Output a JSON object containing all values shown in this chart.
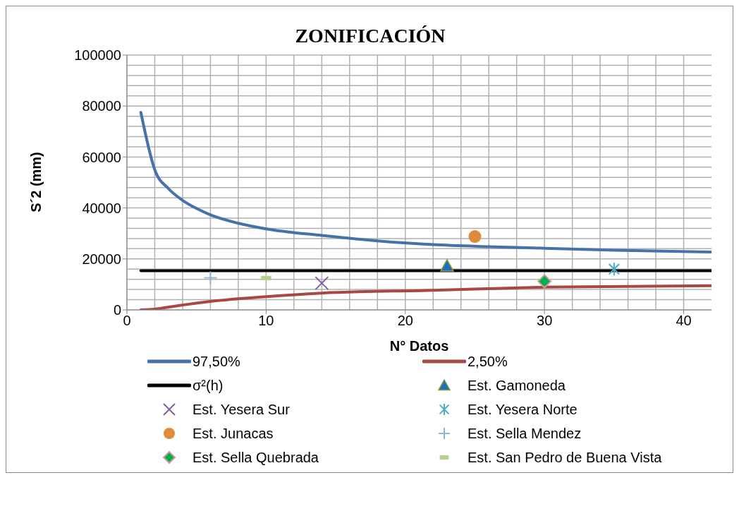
{
  "chart_data": {
    "type": "line",
    "title": "ZONIFICACIÓN",
    "xlabel": "N° Datos",
    "ylabel": "S´2 (mm)",
    "xlim": [
      0,
      42
    ],
    "xticks": [
      0,
      10,
      20,
      30,
      40
    ],
    "ylim": [
      0,
      100000
    ],
    "yticks": [
      0,
      20000,
      40000,
      60000,
      80000,
      100000
    ],
    "grid": true,
    "legend": "bottom",
    "line_style": "solid",
    "series": [
      {
        "name": "97,50%",
        "color": "#4572a7",
        "marker": "none",
        "x": [
          1,
          2,
          3,
          4,
          5,
          6,
          8,
          10,
          14,
          18,
          22,
          26,
          30,
          35,
          42
        ],
        "values": [
          77500,
          55000,
          47500,
          43000,
          39800,
          37300,
          34000,
          31800,
          29200,
          27100,
          25600,
          24800,
          24200,
          23400,
          22700
        ]
      },
      {
        "name": "2,50%",
        "color": "#aa4643",
        "marker": "none",
        "x": [
          1,
          2,
          3,
          4,
          6,
          10,
          14,
          22,
          30,
          42
        ],
        "values": [
          0,
          300,
          1100,
          1900,
          3300,
          5200,
          6600,
          7700,
          8900,
          9500
        ]
      },
      {
        "name": "σ²(h)",
        "color": "#000000",
        "marker": "none",
        "x": [
          1,
          42
        ],
        "values": [
          15400,
          15400
        ]
      },
      {
        "name": "Est. Gamoneda",
        "type": "scatter",
        "color": "#1f6fbf",
        "marker": "triangle",
        "x": [
          23
        ],
        "values": [
          17200
        ]
      },
      {
        "name": "Est. Yesera Sur",
        "type": "scatter",
        "color": "#7f5fa0",
        "marker": "cross",
        "x": [
          14
        ],
        "values": [
          10500
        ]
      },
      {
        "name": "Est. Yesera Norte",
        "type": "scatter",
        "color": "#4bacc6",
        "x": [
          35
        ],
        "values": [
          16000
        ]
      },
      {
        "name": "Est. Junacas",
        "type": "scatter",
        "color": "#e08a3c",
        "marker": "circle",
        "x": [
          25
        ],
        "values": [
          28800
        ]
      },
      {
        "name": "Est. Sella Mendez",
        "type": "scatter",
        "color": "#95b3d7",
        "marker": "plus",
        "x": [
          6
        ],
        "values": [
          12600
        ]
      },
      {
        "name": "Est. Sella Quebrada",
        "type": "scatter",
        "color": "#00b050",
        "marker": "diamond",
        "x": [
          30
        ],
        "values": [
          11200
        ]
      },
      {
        "name": "Est. San Pedro de Buena Vista",
        "type": "scatter",
        "color": "#b3cf8d",
        "marker": "square",
        "x": [
          10
        ],
        "values": [
          12500
        ]
      }
    ]
  }
}
